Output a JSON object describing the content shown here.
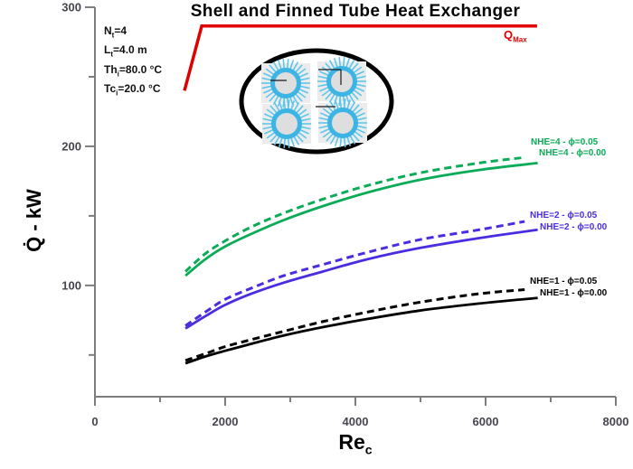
{
  "title": "Shell and Finned Tube Heat Exchanger",
  "parameters": [
    {
      "pre": "N",
      "sub": "t",
      "post": "=4"
    },
    {
      "pre": "L",
      "sub": "t",
      "post": "=4.0 m"
    },
    {
      "pre": "Th",
      "sub": "i",
      "post": "=80.0 °C"
    },
    {
      "pre": "Tc",
      "sub": "i",
      "post": "=20.0 °C"
    }
  ],
  "qmax_label": {
    "base": "Q",
    "sub": "Max"
  },
  "axes": {
    "y_label": "Q̇ - kW",
    "x_label_base": "Re",
    "x_label_sub": "c"
  },
  "colors": {
    "axis": "#7d7d7d",
    "tick_label": "#45454d",
    "title": "#050505",
    "nhe4": "#0cab57",
    "nhe2": "#4a2de0",
    "nhe1": "#000000",
    "qmax": "#e00000",
    "fin": "#5fc6ea",
    "tube_ring": "#3cb4e4",
    "tube_center": "#dedede",
    "tube_patch": "#ececec"
  },
  "inset": {
    "name": "finned-tube-bundle-cross-section",
    "tube_count": 4
  },
  "chart_data": {
    "type": "line",
    "title": "Shell and Finned Tube Heat Exchanger",
    "xlabel": "Re_c",
    "ylabel": "Q̇ - kW",
    "xlim": [
      0,
      8000
    ],
    "ylim": [
      20,
      300
    ],
    "grid": false,
    "legend_position": "right-of-curve-ends",
    "x_major_ticks": [
      0,
      2000,
      4000,
      6000,
      8000
    ],
    "x_minor_ticks": [
      1000,
      3000,
      5000,
      7000
    ],
    "y_major_ticks": [
      300,
      200,
      100
    ],
    "y_minor_ticks": [
      250,
      150,
      50
    ],
    "series": [
      {
        "name": "NHE=4 - ϕ=0.05",
        "color": "#0cab57",
        "dashed": true,
        "smooth": true,
        "x": [
          1390,
          1700,
          2000,
          2400,
          2900,
          3500,
          4200,
          5000,
          5900,
          6600
        ],
        "y": [
          110,
          123,
          132,
          142,
          152,
          162,
          172,
          181,
          188,
          192
        ]
      },
      {
        "name": "NHE=4 - ϕ=0.00",
        "color": "#0cab57",
        "dashed": false,
        "smooth": true,
        "x": [
          1390,
          1700,
          2000,
          2400,
          2900,
          3500,
          4200,
          5000,
          5900,
          6800
        ],
        "y": [
          107,
          119,
          128,
          137,
          147,
          157,
          167,
          176,
          183,
          188
        ]
      },
      {
        "name": "NHE=2 - ϕ=0.05",
        "color": "#4a2de0",
        "dashed": true,
        "smooth": true,
        "x": [
          1390,
          1700,
          2000,
          2400,
          2900,
          3500,
          4200,
          5000,
          5900,
          6600
        ],
        "y": [
          71,
          81,
          90,
          98,
          107,
          115,
          124,
          133,
          140,
          146
        ]
      },
      {
        "name": "NHE=2 - ϕ=0.00",
        "color": "#4a2de0",
        "dashed": false,
        "smooth": true,
        "x": [
          1390,
          1700,
          2000,
          2400,
          2900,
          3500,
          4200,
          5000,
          5900,
          6800
        ],
        "y": [
          69,
          78,
          86,
          94,
          102,
          110,
          119,
          127,
          134,
          140
        ]
      },
      {
        "name": "NHE=1 - ϕ=0.05",
        "color": "#000000",
        "dashed": true,
        "smooth": true,
        "x": [
          1390,
          1700,
          2000,
          2400,
          2900,
          3500,
          4200,
          5000,
          5900,
          6600
        ],
        "y": [
          46,
          51,
          56,
          61,
          67,
          74,
          81,
          88,
          94,
          97
        ]
      },
      {
        "name": "NHE=1 - ϕ=0.00",
        "color": "#000000",
        "dashed": false,
        "smooth": true,
        "x": [
          1390,
          1700,
          2000,
          2400,
          2900,
          3500,
          4200,
          5000,
          5900,
          6800
        ],
        "y": [
          44,
          49,
          53,
          58,
          64,
          70,
          76,
          82,
          87,
          91
        ]
      },
      {
        "name": "QMax",
        "color": "#e00000",
        "dashed": false,
        "smooth": false,
        "x": [
          1375,
          1640,
          6790
        ],
        "y": [
          240,
          286.5,
          286.5
        ]
      }
    ]
  }
}
